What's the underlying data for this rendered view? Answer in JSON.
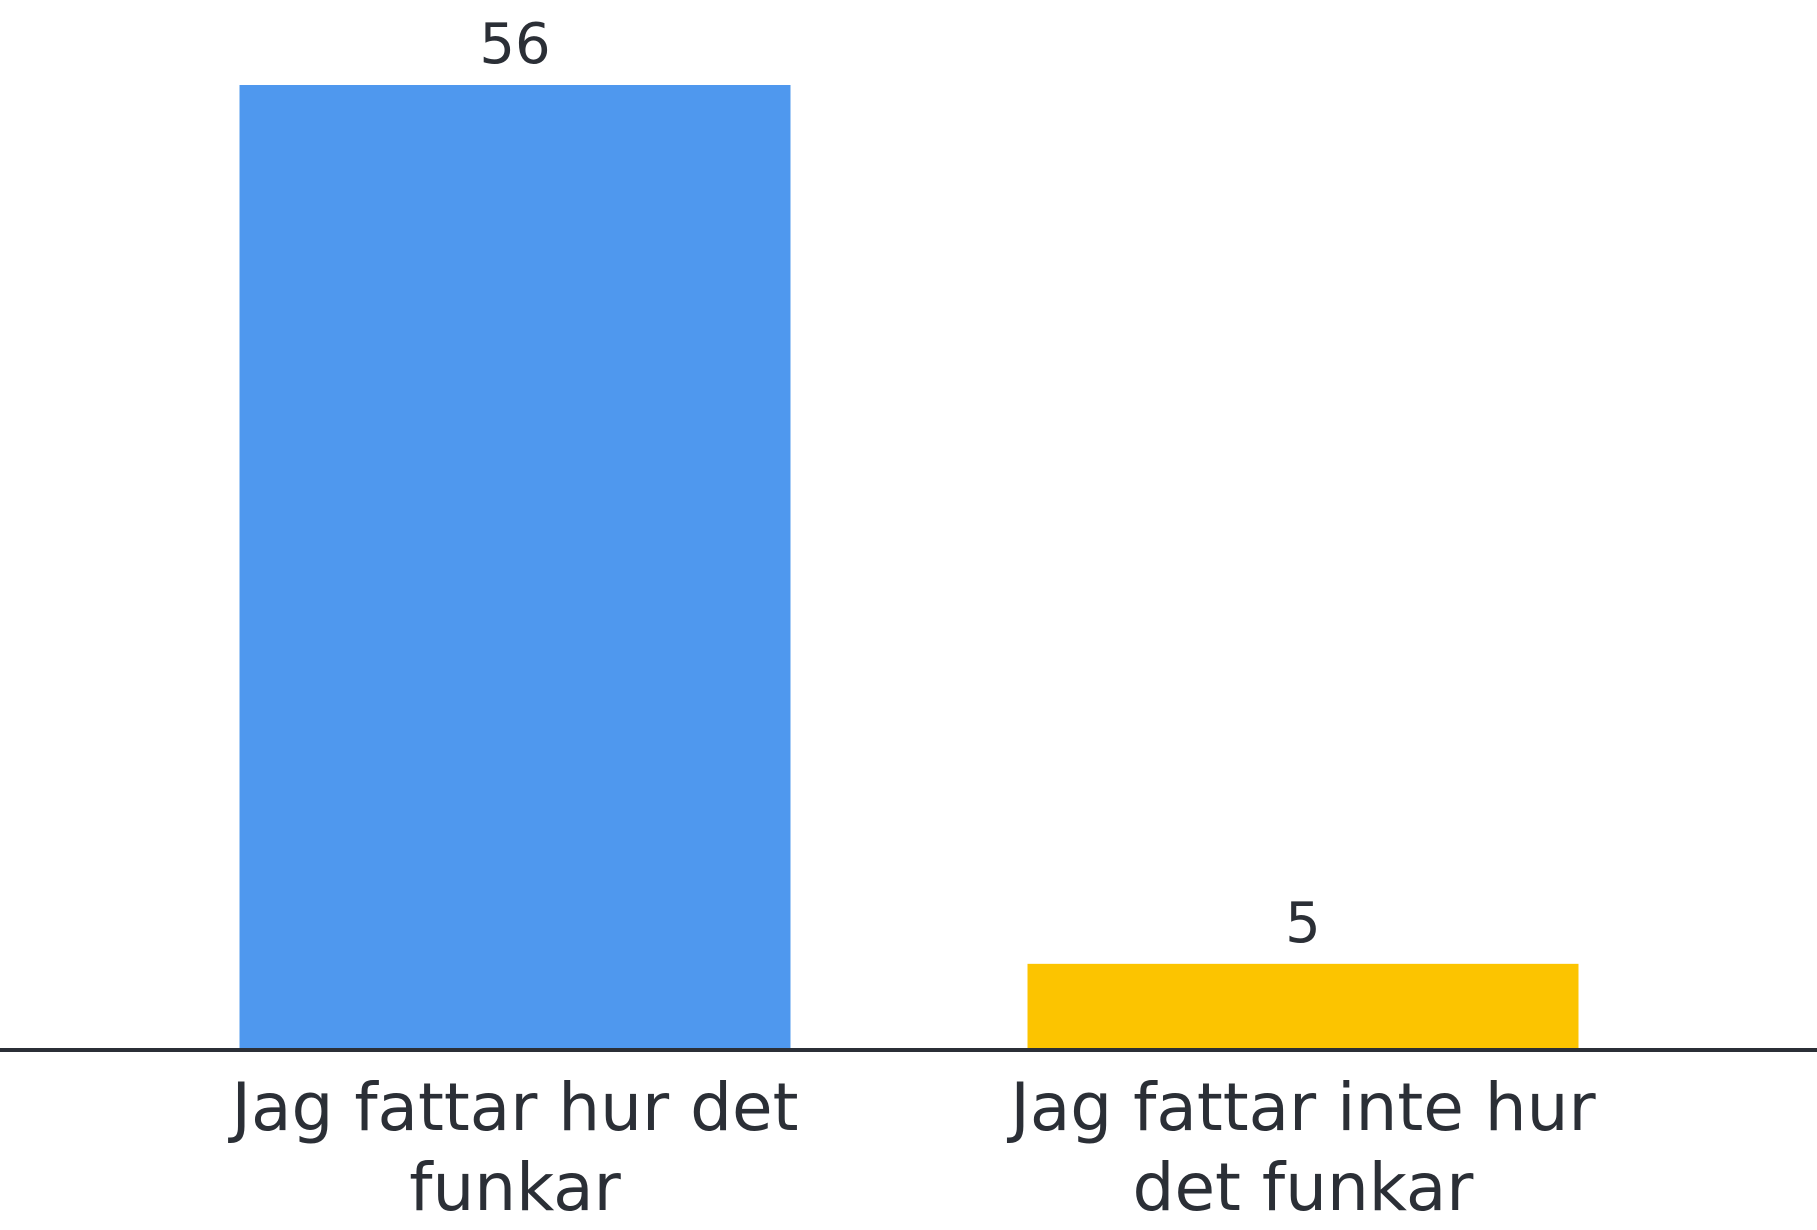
{
  "chart_data": {
    "type": "bar",
    "categories": [
      "Jag fattar hur det funkar",
      "Jag fattar inte hur det funkar"
    ],
    "values": [
      56,
      5
    ],
    "colors": [
      "#4f98ee",
      "#fcc400"
    ],
    "ylim": [
      0,
      56
    ]
  }
}
